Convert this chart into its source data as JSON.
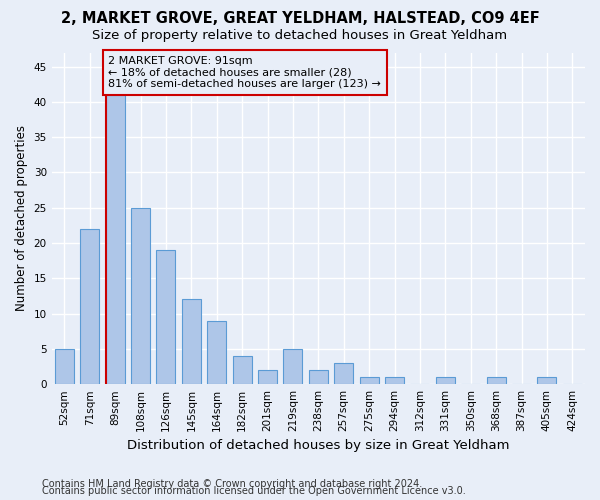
{
  "title1": "2, MARKET GROVE, GREAT YELDHAM, HALSTEAD, CO9 4EF",
  "title2": "Size of property relative to detached houses in Great Yeldham",
  "xlabel": "Distribution of detached houses by size in Great Yeldham",
  "ylabel": "Number of detached properties",
  "footnote1": "Contains HM Land Registry data © Crown copyright and database right 2024.",
  "footnote2": "Contains public sector information licensed under the Open Government Licence v3.0.",
  "bin_labels": [
    "52sqm",
    "71sqm",
    "89sqm",
    "108sqm",
    "126sqm",
    "145sqm",
    "164sqm",
    "182sqm",
    "201sqm",
    "219sqm",
    "238sqm",
    "257sqm",
    "275sqm",
    "294sqm",
    "312sqm",
    "331sqm",
    "350sqm",
    "368sqm",
    "387sqm",
    "405sqm",
    "424sqm"
  ],
  "bar_values": [
    5,
    22,
    41,
    25,
    19,
    12,
    9,
    4,
    2,
    5,
    2,
    3,
    1,
    1,
    0,
    1,
    0,
    1,
    0,
    1,
    0
  ],
  "bar_color": "#aec6e8",
  "bar_edge_color": "#5b9bd5",
  "annotation_text": "2 MARKET GROVE: 91sqm\n← 18% of detached houses are smaller (28)\n81% of semi-detached houses are larger (123) →",
  "vline_color": "#cc0000",
  "annotation_box_color": "#cc0000",
  "ylim": [
    0,
    47
  ],
  "yticks": [
    0,
    5,
    10,
    15,
    20,
    25,
    30,
    35,
    40,
    45
  ],
  "background_color": "#e8eef8",
  "grid_color": "#ffffff",
  "title1_fontsize": 10.5,
  "title2_fontsize": 9.5,
  "xlabel_fontsize": 9.5,
  "ylabel_fontsize": 8.5,
  "tick_fontsize": 7.5,
  "annotation_fontsize": 8,
  "footnote_fontsize": 7
}
